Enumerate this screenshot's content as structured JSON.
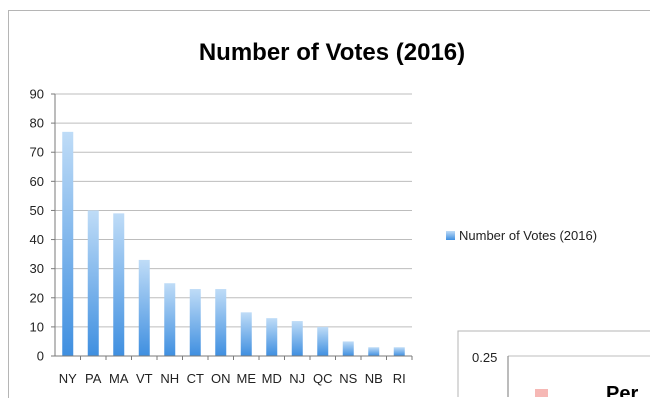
{
  "chart_data": [
    {
      "type": "bar",
      "title": "Number of Votes (2016)",
      "categories": [
        "NY",
        "PA",
        "MA",
        "VT",
        "NH",
        "CT",
        "ON",
        "ME",
        "MD",
        "NJ",
        "QC",
        "NS",
        "NB",
        "RI"
      ],
      "series": [
        {
          "name": "Number of Votes (2016)",
          "values": [
            77,
            50,
            49,
            33,
            25,
            23,
            23,
            15,
            13,
            12,
            10,
            5,
            3,
            3
          ]
        }
      ],
      "yticks": [
        "0",
        "10",
        "20",
        "30",
        "40",
        "50",
        "60",
        "70",
        "80",
        "90"
      ],
      "ylim": [
        0,
        90
      ],
      "grid": true,
      "legend": "right",
      "xlabel": "",
      "ylabel": ""
    },
    {
      "type": "bar",
      "title": "Per",
      "yticks": [
        "0.25"
      ],
      "legend_swatch_color": "#f6b8b5"
    }
  ],
  "colors": {
    "bar_light": "#bfdcf7",
    "bar_dark": "#3f8fe0",
    "grid": "#bdbdbd",
    "axis": "#7a7a7a"
  }
}
